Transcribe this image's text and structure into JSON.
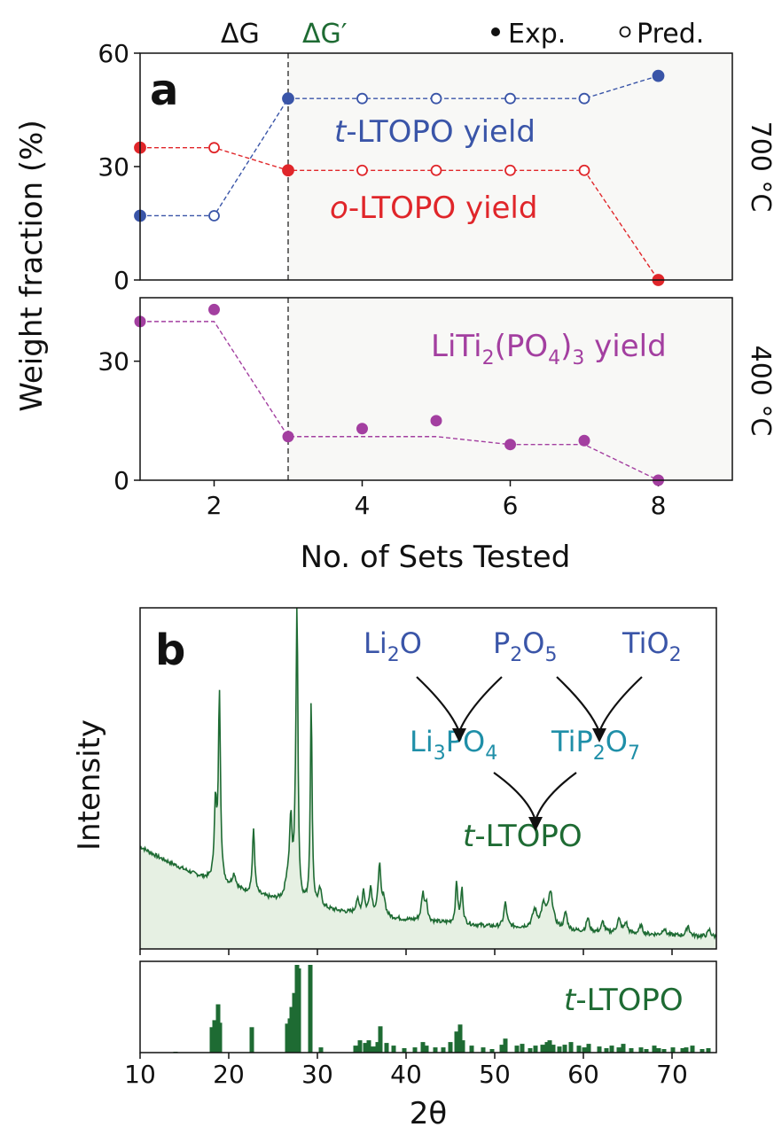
{
  "colors": {
    "blue": "#3a55a8",
    "red": "#e0262a",
    "purple": "#a33fa0",
    "green": "#1e6b33",
    "cyan": "#1f8fa8",
    "shade": "#f8f8f6",
    "xrd_fill": "#e6f0e3"
  },
  "header": {
    "dg": "ΔG",
    "dg_prime": "ΔG′",
    "exp_label": "Exp.",
    "pred_label": "Pred."
  },
  "panel_a": {
    "letter": "a",
    "ylabel": "Weight fraction (%)",
    "xlabel": "No. of Sets Tested",
    "top_side_label": "700 °C",
    "bottom_side_label": "400 °C",
    "t_yield_prefix": "t",
    "t_yield_suffix": "-LTOPO yield",
    "o_yield_prefix": "o",
    "o_yield_suffix": "-LTOPO yield",
    "li_yield": {
      "a": "LiTi",
      "s1": "2",
      "b": "(PO",
      "s2": "4",
      "c": ")",
      "s3": "3",
      "d": " yield"
    }
  },
  "panel_b": {
    "letter": "b",
    "ylabel": "Intensity",
    "xlabel": "2θ",
    "ref_prefix": "t",
    "ref_suffix": "-LTOPO",
    "scheme": {
      "li2o": {
        "a": "Li",
        "s": "2",
        "b": "O"
      },
      "p2o5": {
        "a": "P",
        "s1": "2",
        "b": "O",
        "s2": "5"
      },
      "tio2": {
        "a": "TiO",
        "s": "2"
      },
      "li3po4": {
        "a": "Li",
        "s1": "3",
        "b": "PO",
        "s2": "4"
      },
      "tip2o7": {
        "a": "TiP",
        "s1": "2",
        "b": "O",
        "s2": "7"
      },
      "product_prefix": "t",
      "product_suffix": "-LTOPO"
    }
  },
  "chart_data": [
    {
      "type": "line",
      "panel": "a-top",
      "x": [
        1,
        2,
        3,
        4,
        5,
        6,
        7,
        8
      ],
      "xlim": [
        1,
        9
      ],
      "ylim": [
        0,
        60
      ],
      "yticks": [
        0,
        30,
        60
      ],
      "marker_legend": {
        "filled": "Exp.",
        "open": "Pred."
      },
      "series": [
        {
          "name": "t-LTOPO yield",
          "color": "#3a55a8",
          "values": [
            17,
            17,
            48,
            48,
            48,
            48,
            48,
            54
          ],
          "filled": [
            true,
            false,
            true,
            false,
            false,
            false,
            false,
            true
          ]
        },
        {
          "name": "o-LTOPO yield",
          "color": "#e0262a",
          "values": [
            35,
            35,
            29,
            29,
            29,
            29,
            29,
            0
          ],
          "filled": [
            true,
            false,
            true,
            false,
            false,
            false,
            false,
            true
          ]
        }
      ],
      "annotations": [
        "ΔG",
        "ΔG′",
        "700 °C"
      ],
      "vline_x": 3
    },
    {
      "type": "line",
      "panel": "a-bottom",
      "x": [
        1,
        2,
        3,
        4,
        5,
        6,
        7,
        8
      ],
      "xlim": [
        1,
        9
      ],
      "ylim": [
        0,
        46
      ],
      "yticks": [
        0,
        30
      ],
      "xticks": [
        2,
        4,
        6,
        8
      ],
      "series": [
        {
          "name": "LiTi2(PO4)3 yield",
          "color": "#a33fa0",
          "line": [
            40,
            40,
            11,
            11,
            11,
            9,
            9,
            0
          ],
          "points": [
            40,
            43,
            11,
            13,
            15,
            9,
            10,
            0
          ]
        }
      ],
      "annotations": [
        "400 °C"
      ],
      "vline_x": 3
    },
    {
      "type": "area",
      "panel": "b-top",
      "xlim": [
        10,
        75
      ],
      "ylim": [
        0,
        1
      ],
      "baseline": {
        "x": [
          10,
          12,
          14,
          16,
          18,
          20,
          22,
          25,
          30,
          35,
          40,
          45,
          50,
          55,
          60,
          65,
          70,
          75
        ],
        "y": [
          0.3,
          0.27,
          0.245,
          0.22,
          0.2,
          0.18,
          0.165,
          0.145,
          0.12,
          0.1,
          0.085,
          0.075,
          0.065,
          0.06,
          0.05,
          0.045,
          0.04,
          0.035
        ]
      },
      "peaks": [
        {
          "pos": 18.5,
          "h": 0.22,
          "w": 0.16
        },
        {
          "pos": 18.95,
          "h": 0.55,
          "w": 0.14
        },
        {
          "pos": 20.6,
          "h": 0.04,
          "w": 0.25
        },
        {
          "pos": 22.8,
          "h": 0.19,
          "w": 0.15
        },
        {
          "pos": 26.6,
          "h": 0.05,
          "w": 0.3
        },
        {
          "pos": 27.0,
          "h": 0.22,
          "w": 0.18
        },
        {
          "pos": 27.5,
          "h": 0.12,
          "w": 0.15
        },
        {
          "pos": 27.7,
          "h": 0.86,
          "w": 0.12
        },
        {
          "pos": 29.3,
          "h": 0.6,
          "w": 0.12
        },
        {
          "pos": 30.3,
          "h": 0.05,
          "w": 0.2
        },
        {
          "pos": 34.5,
          "h": 0.04,
          "w": 0.2
        },
        {
          "pos": 35.2,
          "h": 0.07,
          "w": 0.15
        },
        {
          "pos": 36.0,
          "h": 0.08,
          "w": 0.2
        },
        {
          "pos": 37.0,
          "h": 0.15,
          "w": 0.18
        },
        {
          "pos": 37.5,
          "h": 0.05,
          "w": 0.2
        },
        {
          "pos": 41.9,
          "h": 0.08,
          "w": 0.2
        },
        {
          "pos": 42.3,
          "h": 0.05,
          "w": 0.15
        },
        {
          "pos": 45.7,
          "h": 0.12,
          "w": 0.15
        },
        {
          "pos": 46.3,
          "h": 0.1,
          "w": 0.15
        },
        {
          "pos": 51.2,
          "h": 0.07,
          "w": 0.2
        },
        {
          "pos": 54.5,
          "h": 0.05,
          "w": 0.3
        },
        {
          "pos": 55.5,
          "h": 0.06,
          "w": 0.3
        },
        {
          "pos": 56.3,
          "h": 0.1,
          "w": 0.35
        },
        {
          "pos": 58.0,
          "h": 0.05,
          "w": 0.2
        },
        {
          "pos": 60.5,
          "h": 0.04,
          "w": 0.2
        },
        {
          "pos": 62.2,
          "h": 0.03,
          "w": 0.2
        },
        {
          "pos": 64.0,
          "h": 0.04,
          "w": 0.25
        },
        {
          "pos": 64.8,
          "h": 0.03,
          "w": 0.2
        },
        {
          "pos": 66.5,
          "h": 0.025,
          "w": 0.2
        },
        {
          "pos": 69.1,
          "h": 0.02,
          "w": 0.2
        },
        {
          "pos": 71.8,
          "h": 0.03,
          "w": 0.2
        },
        {
          "pos": 74.2,
          "h": 0.02,
          "w": 0.2
        }
      ]
    },
    {
      "type": "bar",
      "panel": "b-bottom",
      "xlim": [
        10,
        75
      ],
      "xticks": [
        10,
        20,
        30,
        40,
        50,
        60,
        70
      ],
      "ylim": [
        0,
        1
      ],
      "positions": [
        14,
        18.1,
        18.4,
        18.8,
        19.0,
        22.6,
        26.6,
        26.9,
        27.1,
        27.4,
        27.7,
        27.9,
        29.2,
        30.4,
        34.3,
        34.8,
        35.4,
        35.8,
        36.3,
        36.8,
        37.1,
        37.8,
        38.6,
        39.8,
        41.0,
        41.9,
        42.3,
        43.3,
        44.2,
        45.0,
        45.7,
        46.1,
        46.4,
        47.4,
        48.7,
        49.7,
        50.8,
        51.2,
        52.5,
        53.1,
        54.0,
        54.6,
        55.4,
        55.9,
        56.2,
        56.6,
        57.3,
        57.9,
        58.6,
        59.5,
        60.1,
        60.6,
        61.8,
        62.6,
        63.2,
        64.0,
        64.5,
        65.4,
        66.5,
        67.1,
        68.0,
        68.5,
        69.1,
        70.1,
        71.2,
        71.6,
        72.3,
        73.4,
        74.1
      ],
      "values": [
        0.01,
        0.29,
        0.37,
        0.55,
        0.34,
        0.29,
        0.33,
        0.39,
        0.52,
        0.68,
        1.0,
        0.96,
        1.0,
        0.06,
        0.08,
        0.14,
        0.11,
        0.14,
        0.07,
        0.12,
        0.3,
        0.11,
        0.08,
        0.05,
        0.06,
        0.12,
        0.08,
        0.06,
        0.06,
        0.12,
        0.24,
        0.32,
        0.14,
        0.08,
        0.06,
        0.04,
        0.09,
        0.16,
        0.08,
        0.1,
        0.05,
        0.08,
        0.09,
        0.12,
        0.14,
        0.09,
        0.07,
        0.09,
        0.12,
        0.08,
        0.06,
        0.1,
        0.07,
        0.05,
        0.08,
        0.06,
        0.1,
        0.05,
        0.06,
        0.04,
        0.08,
        0.05,
        0.04,
        0.06,
        0.05,
        0.06,
        0.08,
        0.04,
        0.05
      ]
    }
  ]
}
